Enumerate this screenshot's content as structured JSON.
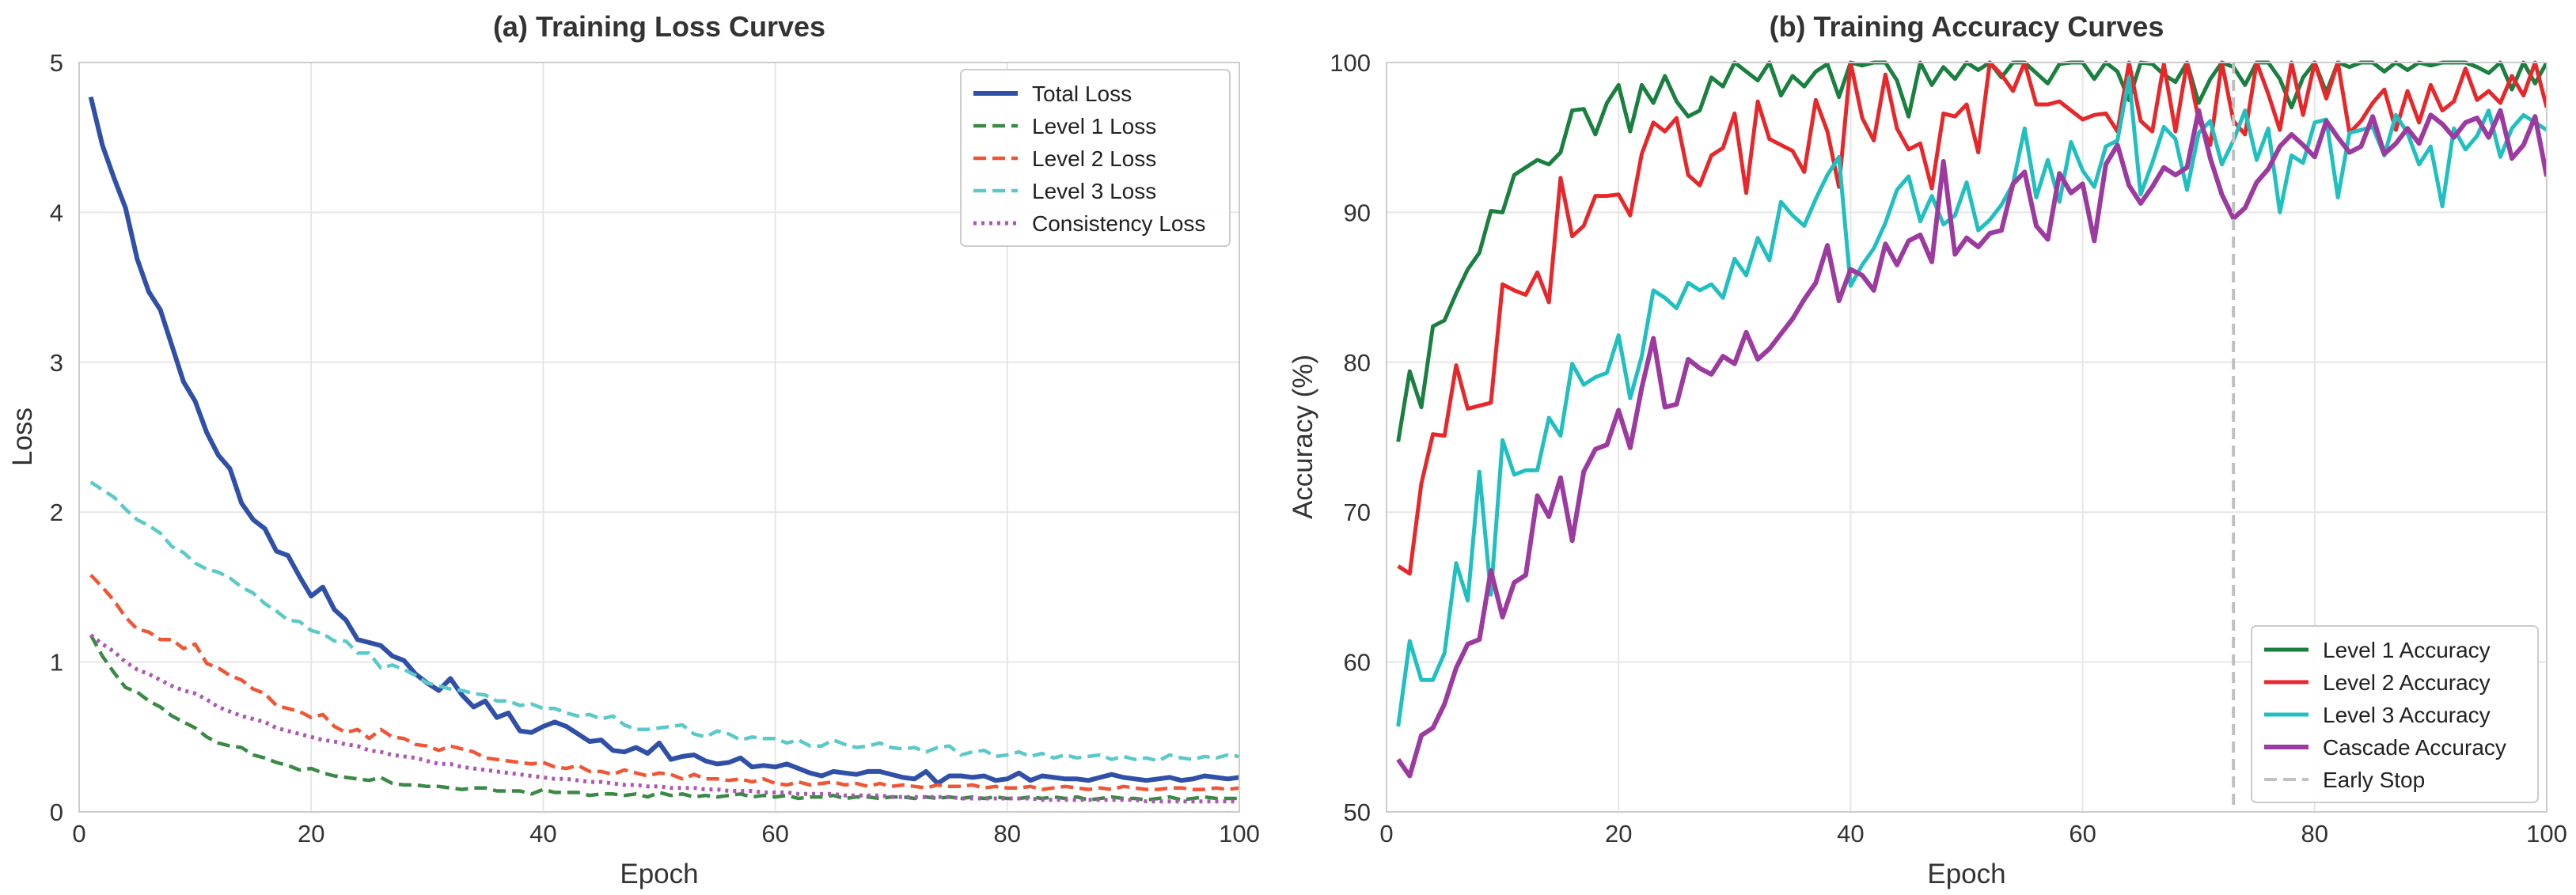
{
  "chart_data": [
    {
      "type": "line",
      "title": "(a) Training Loss Curves",
      "xlabel": "Epoch",
      "ylabel": "Loss",
      "xlim": [
        0,
        100
      ],
      "ylim": [
        0,
        5
      ],
      "xticks": [
        0,
        20,
        40,
        60,
        80,
        100
      ],
      "yticks": [
        0,
        1,
        2,
        3,
        4,
        5
      ],
      "grid": true,
      "legend": "top-right",
      "series": [
        {
          "name": "Total Loss",
          "color": "#3050a8",
          "style": "solid",
          "width": 6,
          "values": [
            4.77,
            4.45,
            4.23,
            4.03,
            3.69,
            3.47,
            3.35,
            3.11,
            2.87,
            2.74,
            2.53,
            2.38,
            2.29,
            2.06,
            1.95,
            1.89,
            1.74,
            1.71,
            1.57,
            1.44,
            1.5,
            1.35,
            1.28,
            1.15,
            1.13,
            1.11,
            1.04,
            1.01,
            0.92,
            0.86,
            0.81,
            0.89,
            0.78,
            0.7,
            0.74,
            0.63,
            0.66,
            0.54,
            0.53,
            0.57,
            0.6,
            0.57,
            0.52,
            0.47,
            0.48,
            0.41,
            0.4,
            0.43,
            0.39,
            0.46,
            0.35,
            0.37,
            0.38,
            0.34,
            0.32,
            0.33,
            0.36,
            0.3,
            0.31,
            0.3,
            0.32,
            0.29,
            0.26,
            0.24,
            0.27,
            0.26,
            0.25,
            0.27,
            0.27,
            0.25,
            0.23,
            0.22,
            0.27,
            0.19,
            0.24,
            0.24,
            0.23,
            0.24,
            0.21,
            0.22,
            0.26,
            0.21,
            0.24,
            0.23,
            0.22,
            0.22,
            0.21,
            0.23,
            0.25,
            0.23,
            0.22,
            0.21,
            0.22,
            0.23,
            0.21,
            0.22,
            0.24,
            0.23,
            0.22,
            0.23
          ]
        },
        {
          "name": "Level 1 Loss",
          "color": "#3a8a45",
          "style": "dashed",
          "width": 4.5,
          "values": [
            1.18,
            1.04,
            0.93,
            0.83,
            0.8,
            0.74,
            0.7,
            0.64,
            0.6,
            0.56,
            0.5,
            0.46,
            0.44,
            0.43,
            0.38,
            0.36,
            0.33,
            0.31,
            0.28,
            0.29,
            0.26,
            0.24,
            0.23,
            0.22,
            0.21,
            0.23,
            0.19,
            0.18,
            0.18,
            0.17,
            0.17,
            0.16,
            0.15,
            0.16,
            0.16,
            0.14,
            0.14,
            0.14,
            0.12,
            0.15,
            0.13,
            0.13,
            0.13,
            0.11,
            0.12,
            0.12,
            0.11,
            0.12,
            0.1,
            0.13,
            0.11,
            0.12,
            0.1,
            0.11,
            0.1,
            0.11,
            0.12,
            0.1,
            0.11,
            0.1,
            0.11,
            0.09,
            0.1,
            0.1,
            0.11,
            0.09,
            0.1,
            0.1,
            0.09,
            0.1,
            0.1,
            0.09,
            0.1,
            0.09,
            0.1,
            0.09,
            0.1,
            0.09,
            0.1,
            0.09,
            0.09,
            0.1,
            0.09,
            0.1,
            0.09,
            0.1,
            0.08,
            0.09,
            0.1,
            0.09,
            0.09,
            0.08,
            0.09,
            0.1,
            0.08,
            0.09,
            0.1,
            0.09,
            0.09,
            0.09
          ]
        },
        {
          "name": "Level 2 Loss",
          "color": "#f05535",
          "style": "dashed",
          "width": 4.5,
          "values": [
            1.58,
            1.5,
            1.41,
            1.3,
            1.22,
            1.2,
            1.15,
            1.15,
            1.09,
            1.12,
            0.99,
            0.96,
            0.91,
            0.88,
            0.82,
            0.79,
            0.71,
            0.69,
            0.67,
            0.63,
            0.65,
            0.57,
            0.53,
            0.55,
            0.49,
            0.55,
            0.5,
            0.49,
            0.45,
            0.44,
            0.41,
            0.44,
            0.42,
            0.4,
            0.36,
            0.35,
            0.34,
            0.33,
            0.32,
            0.33,
            0.3,
            0.29,
            0.31,
            0.27,
            0.27,
            0.25,
            0.28,
            0.26,
            0.24,
            0.26,
            0.25,
            0.22,
            0.25,
            0.22,
            0.22,
            0.21,
            0.22,
            0.2,
            0.22,
            0.19,
            0.18,
            0.2,
            0.18,
            0.19,
            0.2,
            0.18,
            0.19,
            0.17,
            0.19,
            0.17,
            0.18,
            0.17,
            0.16,
            0.18,
            0.17,
            0.17,
            0.18,
            0.16,
            0.17,
            0.16,
            0.16,
            0.17,
            0.15,
            0.16,
            0.17,
            0.16,
            0.15,
            0.16,
            0.15,
            0.17,
            0.16,
            0.15,
            0.15,
            0.16,
            0.16,
            0.15,
            0.15,
            0.16,
            0.15,
            0.16
          ]
        },
        {
          "name": "Level 3 Loss",
          "color": "#5ac9c9",
          "style": "dashed",
          "width": 4.5,
          "values": [
            2.2,
            2.15,
            2.1,
            2.02,
            1.95,
            1.91,
            1.86,
            1.77,
            1.73,
            1.66,
            1.62,
            1.6,
            1.56,
            1.5,
            1.46,
            1.39,
            1.34,
            1.28,
            1.27,
            1.21,
            1.19,
            1.14,
            1.14,
            1.06,
            1.06,
            0.96,
            0.98,
            0.95,
            0.91,
            0.86,
            0.84,
            0.82,
            0.81,
            0.79,
            0.78,
            0.74,
            0.74,
            0.71,
            0.72,
            0.69,
            0.69,
            0.66,
            0.64,
            0.65,
            0.62,
            0.64,
            0.58,
            0.55,
            0.55,
            0.56,
            0.57,
            0.58,
            0.52,
            0.5,
            0.54,
            0.52,
            0.48,
            0.5,
            0.49,
            0.49,
            0.46,
            0.48,
            0.44,
            0.44,
            0.48,
            0.45,
            0.43,
            0.44,
            0.46,
            0.43,
            0.42,
            0.43,
            0.4,
            0.43,
            0.44,
            0.38,
            0.4,
            0.41,
            0.37,
            0.38,
            0.4,
            0.37,
            0.39,
            0.36,
            0.38,
            0.36,
            0.37,
            0.38,
            0.35,
            0.37,
            0.35,
            0.36,
            0.34,
            0.38,
            0.36,
            0.35,
            0.37,
            0.36,
            0.38,
            0.37
          ]
        },
        {
          "name": "Consistency Loss",
          "color": "#b055b5",
          "style": "dotted",
          "width": 5,
          "values": [
            1.18,
            1.12,
            1.07,
            1.0,
            0.95,
            0.92,
            0.88,
            0.84,
            0.81,
            0.79,
            0.75,
            0.7,
            0.67,
            0.64,
            0.62,
            0.6,
            0.56,
            0.54,
            0.52,
            0.5,
            0.48,
            0.47,
            0.45,
            0.44,
            0.41,
            0.4,
            0.38,
            0.37,
            0.36,
            0.34,
            0.32,
            0.32,
            0.3,
            0.29,
            0.28,
            0.27,
            0.26,
            0.25,
            0.24,
            0.23,
            0.22,
            0.22,
            0.21,
            0.2,
            0.2,
            0.19,
            0.18,
            0.18,
            0.17,
            0.17,
            0.16,
            0.16,
            0.16,
            0.15,
            0.15,
            0.14,
            0.14,
            0.14,
            0.13,
            0.13,
            0.13,
            0.12,
            0.12,
            0.12,
            0.12,
            0.11,
            0.11,
            0.11,
            0.11,
            0.1,
            0.1,
            0.1,
            0.1,
            0.1,
            0.1,
            0.09,
            0.09,
            0.09,
            0.09,
            0.09,
            0.09,
            0.09,
            0.08,
            0.08,
            0.08,
            0.08,
            0.08,
            0.08,
            0.08,
            0.08,
            0.08,
            0.07,
            0.07,
            0.07,
            0.07,
            0.07,
            0.07,
            0.07,
            0.07,
            0.07
          ]
        }
      ]
    },
    {
      "type": "line",
      "title": "(b) Training Accuracy Curves",
      "xlabel": "Epoch",
      "ylabel": "Accuracy (%)",
      "xlim": [
        0,
        100
      ],
      "ylim": [
        50,
        100
      ],
      "xticks": [
        0,
        20,
        40,
        60,
        80,
        100
      ],
      "yticks": [
        50,
        60,
        70,
        80,
        90,
        100
      ],
      "grid": true,
      "legend": "bottom-right",
      "series": [
        {
          "name": "Level 1 Accuracy",
          "color": "#1a8040",
          "style": "solid",
          "width": 5,
          "values": [
            74.7,
            79.4,
            77.0,
            82.4,
            82.8,
            84.6,
            86.2,
            87.3,
            90.1,
            90.0,
            92.5,
            93.0,
            93.5,
            93.2,
            94.0,
            96.8,
            96.9,
            95.2,
            97.3,
            98.5,
            95.4,
            98.5,
            97.3,
            99.1,
            97.4,
            96.4,
            96.8,
            99.0,
            98.4,
            100,
            99.4,
            98.8,
            100,
            97.8,
            99.1,
            98.4,
            99.4,
            99.9,
            97.7,
            100,
            99.8,
            100,
            100,
            98.8,
            96.4,
            100,
            98.5,
            99.7,
            98.9,
            100,
            99.5,
            100,
            99.0,
            100,
            100,
            99.3,
            98.6,
            99.9,
            100,
            100,
            98.9,
            100,
            99.4,
            97.5,
            100,
            99.9,
            99.2,
            98.7,
            100,
            97.3,
            98.9,
            100,
            99.7,
            98.5,
            100,
            100,
            98.9,
            97.0,
            99.0,
            100,
            98.0,
            100,
            99.7,
            100,
            100,
            99.4,
            100,
            99.5,
            100,
            99.8,
            100,
            100,
            100,
            99.7,
            99.3,
            100,
            98.2,
            100,
            98.6,
            100
          ]
        },
        {
          "name": "Level 2 Accuracy",
          "color": "#e8272b",
          "style": "solid",
          "width": 5,
          "values": [
            66.4,
            65.9,
            71.9,
            75.2,
            75.1,
            79.8,
            76.9,
            77.1,
            77.3,
            85.2,
            84.8,
            84.5,
            86.0,
            84.0,
            92.3,
            88.4,
            89.1,
            91.1,
            91.1,
            91.2,
            89.8,
            93.9,
            96.0,
            95.4,
            96.3,
            92.5,
            91.8,
            93.8,
            94.3,
            96.6,
            91.3,
            97.4,
            94.9,
            94.5,
            94.1,
            92.7,
            97.5,
            95.4,
            91.7,
            100,
            96.3,
            94.8,
            99.2,
            95.6,
            94.2,
            94.6,
            91.6,
            96.6,
            96.4,
            97.2,
            94.0,
            100,
            99.2,
            98.1,
            100,
            97.2,
            97.2,
            97.4,
            96.8,
            96.2,
            96.5,
            96.6,
            95.4,
            100,
            96.1,
            95.4,
            99.9,
            95.4,
            100,
            96.2,
            94.5,
            100,
            96.1,
            95.2,
            100,
            97.9,
            95.5,
            100,
            96.5,
            100,
            97.6,
            100,
            95.3,
            96.1,
            97.3,
            98.2,
            95.5,
            98.1,
            96.0,
            98.5,
            96.8,
            97.4,
            99.6,
            97.5,
            98.1,
            97.3,
            99.1,
            97.8,
            100,
            97.0
          ]
        },
        {
          "name": "Level 3 Accuracy",
          "color": "#20c0c0",
          "style": "solid",
          "width": 5,
          "values": [
            55.7,
            61.4,
            58.8,
            58.8,
            60.6,
            66.6,
            64.1,
            72.7,
            64.5,
            74.8,
            72.5,
            72.8,
            72.8,
            76.3,
            75.1,
            79.9,
            78.5,
            79.0,
            79.3,
            81.8,
            77.6,
            80.4,
            84.8,
            84.3,
            83.6,
            85.3,
            84.8,
            85.2,
            84.3,
            86.9,
            85.8,
            88.3,
            86.8,
            90.7,
            89.8,
            89.1,
            90.9,
            92.5,
            93.7,
            85.1,
            86.5,
            87.6,
            89.3,
            91.5,
            92.4,
            89.4,
            91.1,
            89.2,
            89.8,
            92.0,
            88.8,
            89.5,
            90.5,
            91.9,
            95.6,
            91.0,
            93.5,
            90.7,
            94.7,
            92.8,
            91.7,
            94.4,
            94.8,
            99.0,
            91.2,
            93.3,
            95.7,
            94.9,
            91.5,
            95.3,
            96.1,
            93.2,
            94.8,
            96.8,
            93.5,
            95.6,
            90.0,
            93.8,
            93.3,
            96.0,
            96.2,
            91.0,
            95.3,
            95.5,
            95.7,
            93.8,
            96.5,
            95.3,
            93.2,
            94.4,
            90.4,
            95.6,
            94.2,
            95.1,
            96.8,
            93.7,
            95.6,
            96.5,
            96.0,
            95.5
          ]
        },
        {
          "name": "Cascade Accuracy",
          "color": "#9c3aa0",
          "style": "solid",
          "width": 6,
          "values": [
            53.5,
            52.4,
            55.1,
            55.6,
            57.2,
            59.6,
            61.2,
            61.5,
            66.1,
            63.0,
            65.3,
            65.8,
            71.1,
            69.7,
            72.3,
            68.1,
            72.7,
            74.2,
            74.5,
            76.8,
            74.3,
            78.3,
            81.6,
            77.0,
            77.2,
            80.2,
            79.6,
            79.2,
            80.4,
            79.9,
            82.0,
            80.2,
            80.9,
            81.9,
            82.9,
            84.2,
            85.3,
            87.8,
            84.1,
            86.2,
            85.8,
            84.8,
            87.9,
            86.5,
            88.1,
            88.5,
            86.7,
            93.4,
            87.2,
            88.3,
            87.7,
            88.6,
            88.8,
            91.9,
            92.7,
            89.1,
            88.2,
            92.6,
            91.3,
            91.9,
            88.1,
            93.2,
            94.5,
            91.8,
            90.6,
            91.7,
            93.0,
            92.5,
            93.0,
            96.8,
            93.6,
            91.2,
            89.6,
            90.3,
            92.0,
            92.9,
            94.4,
            95.2,
            94.5,
            93.7,
            96.1,
            95.0,
            94.0,
            94.4,
            96.4,
            93.9,
            94.6,
            95.6,
            94.6,
            96.5,
            95.9,
            95.0,
            96.0,
            96.3,
            95.0,
            96.8,
            93.6,
            94.5,
            96.4,
            92.4
          ]
        }
      ],
      "vline": {
        "name": "Early Stop",
        "x": 73,
        "color": "#c0c0c0",
        "style": "dashed"
      }
    }
  ]
}
